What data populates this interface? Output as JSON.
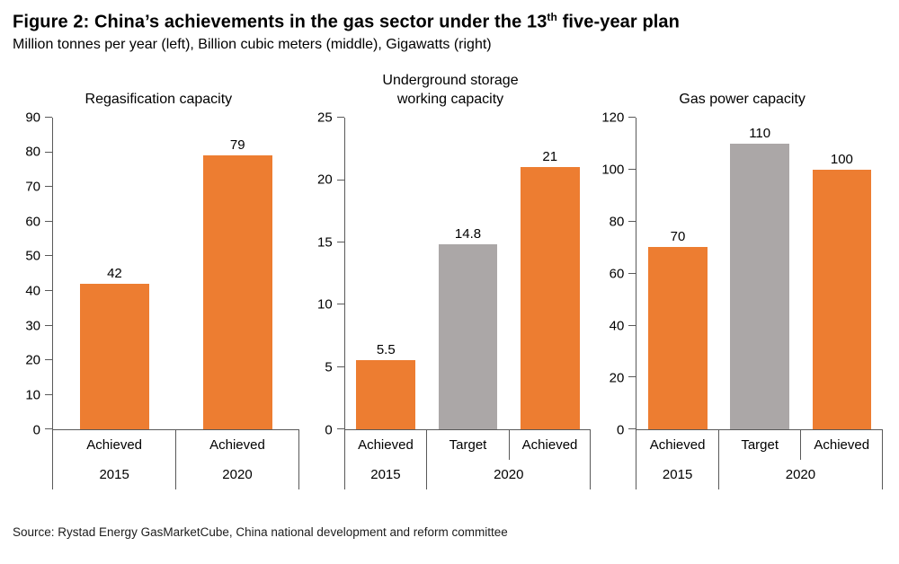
{
  "header": {
    "title_prefix": "Figure 2: China’s achievements in the gas sector under the 13",
    "title_sup": "th",
    "title_suffix": " five-year plan",
    "subtitle": "Million tonnes per year (left), Billion cubic meters (middle), Gigawatts (right)"
  },
  "footer": {
    "source": "Source: Rystad Energy GasMarketCube, China national development and reform committee"
  },
  "colors": {
    "achieved": "#ED7D31",
    "target": "#ABA7A7",
    "axis": "#595959"
  },
  "chart_data": [
    {
      "type": "bar",
      "title": "Regasification capacity",
      "title_display": "Regasification capacity",
      "unit": "Million tonnes per year",
      "ylim": [
        0,
        90
      ],
      "ytick_step": 10,
      "yticks": [
        90,
        80,
        70,
        60,
        50,
        40,
        30,
        20,
        10,
        0
      ],
      "grid": false,
      "legend": "none",
      "bars": [
        {
          "category": "Achieved",
          "year": "2015",
          "value": 42,
          "series": "achieved"
        },
        {
          "category": "Achieved",
          "year": "2020",
          "value": 79,
          "series": "achieved"
        }
      ],
      "year_groups": [
        {
          "label": "2015",
          "span": 1
        },
        {
          "label": "2020",
          "span": 1
        }
      ],
      "bar_width_pct": 56
    },
    {
      "type": "bar",
      "title": "Underground storage working capacity",
      "title_display": "Underground storage\nworking capacity",
      "unit": "Billion cubic meters",
      "ylim": [
        0,
        25
      ],
      "ytick_step": 5,
      "yticks": [
        25,
        20,
        15,
        10,
        5,
        0
      ],
      "grid": false,
      "legend": "none",
      "bars": [
        {
          "category": "Achieved",
          "year": "2015",
          "value": 5.5,
          "series": "achieved"
        },
        {
          "category": "Target",
          "year": "2020",
          "value": 14.8,
          "series": "target"
        },
        {
          "category": "Achieved",
          "year": "2020",
          "value": 21,
          "series": "achieved"
        }
      ],
      "year_groups": [
        {
          "label": "2015",
          "span": 1
        },
        {
          "label": "2020",
          "span": 2
        }
      ],
      "bar_width_pct": 72
    },
    {
      "type": "bar",
      "title": "Gas power capacity",
      "title_display": "Gas power capacity",
      "unit": "Gigawatts",
      "ylim": [
        0,
        120
      ],
      "ytick_step": 20,
      "yticks": [
        120,
        100,
        80,
        60,
        40,
        20,
        0
      ],
      "grid": false,
      "legend": "none",
      "bars": [
        {
          "category": "Achieved",
          "year": "2015",
          "value": 70,
          "series": "achieved"
        },
        {
          "category": "Target",
          "year": "2020",
          "value": 110,
          "series": "target"
        },
        {
          "category": "Achieved",
          "year": "2020",
          "value": 100,
          "series": "achieved"
        }
      ],
      "year_groups": [
        {
          "label": "2015",
          "span": 1
        },
        {
          "label": "2020",
          "span": 2
        }
      ],
      "bar_width_pct": 72
    }
  ]
}
